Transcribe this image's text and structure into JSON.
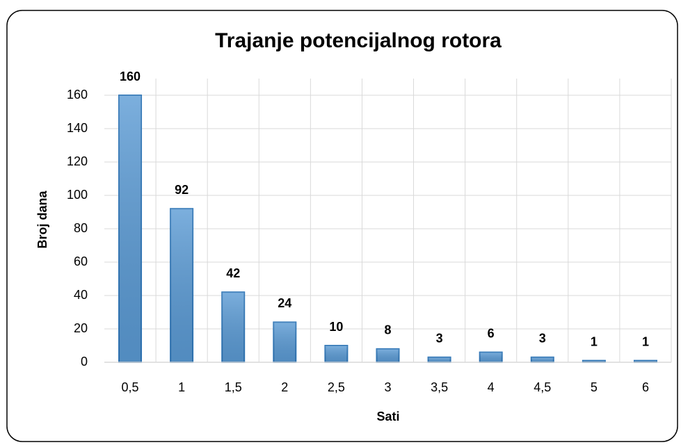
{
  "chart_data": {
    "type": "bar",
    "title": "Trajanje potencijalnog rotora",
    "x_label": "Sati",
    "y_label": "Broj dana",
    "categories": [
      "0,5",
      "1",
      "1,5",
      "2",
      "2,5",
      "3",
      "3,5",
      "4",
      "4,5",
      "5",
      "6"
    ],
    "values": [
      160,
      92,
      42,
      24,
      10,
      8,
      3,
      6,
      3,
      1,
      1
    ],
    "color": "#5b9bd5",
    "ylim": [
      0,
      170
    ],
    "yticks": [
      0,
      20,
      40,
      60,
      80,
      100,
      120,
      140,
      160
    ],
    "grid": true
  }
}
